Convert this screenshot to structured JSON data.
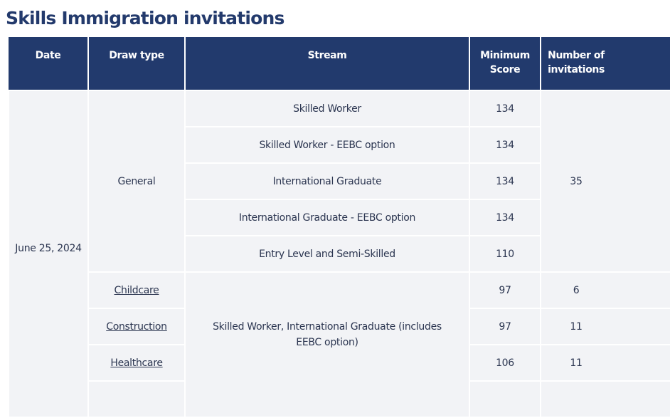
{
  "title": "Skills Immigration invitations",
  "table": {
    "headers": {
      "date": "Date",
      "draw_type": "Draw type",
      "stream": "Stream",
      "minimum_score": "Minimum Score",
      "invitations": "Number of invitations"
    },
    "date": "June 25, 2024",
    "general": {
      "draw_type": "General",
      "invitations": "35",
      "rows": [
        {
          "stream": "Skilled Worker",
          "score": "134"
        },
        {
          "stream": "Skilled Worker - EEBC option",
          "score": "134"
        },
        {
          "stream": "International Graduate",
          "score": "134"
        },
        {
          "stream": "International Graduate - EEBC option",
          "score": "134"
        },
        {
          "stream": "Entry Level and Semi-Skilled",
          "score": "110"
        }
      ]
    },
    "targeted": {
      "stream": "Skilled Worker, International Graduate (includes EEBC option)",
      "rows": [
        {
          "draw_type": "Childcare",
          "score": "97",
          "invitations": "6"
        },
        {
          "draw_type": "Construction",
          "score": "97",
          "invitations": "11"
        },
        {
          "draw_type": "Healthcare",
          "score": "106",
          "invitations": "11"
        }
      ]
    }
  }
}
